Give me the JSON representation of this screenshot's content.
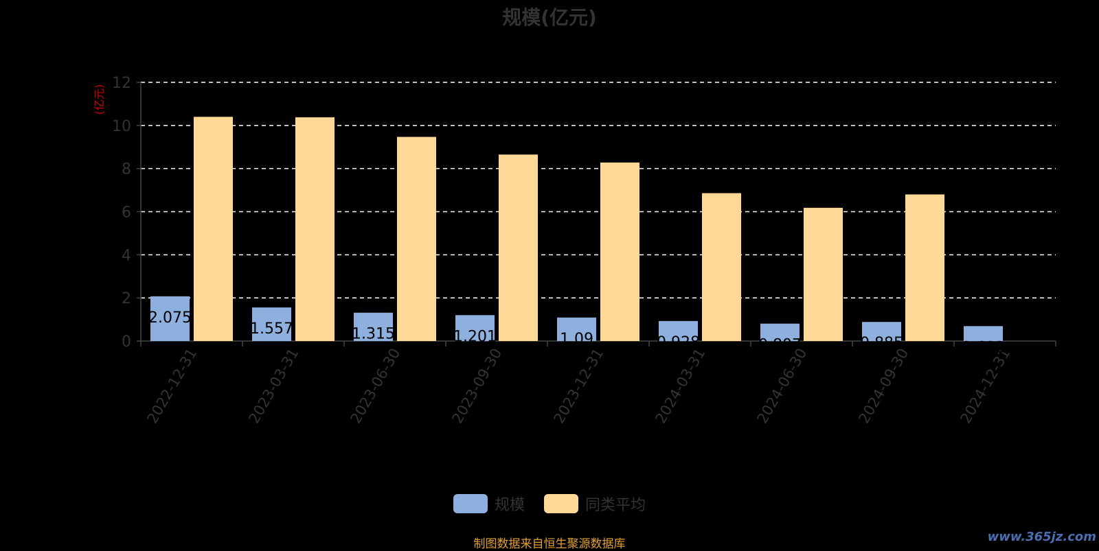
{
  "chart_data": {
    "type": "bar",
    "title": "规模(亿元)",
    "ylabel": "(亿元)",
    "xlabel": "",
    "ylim": [
      0,
      12
    ],
    "yticks": [
      0,
      2,
      4,
      6,
      8,
      10,
      12
    ],
    "grid": true,
    "legend_position": "bottom",
    "categories": [
      "2022-12-31",
      "2023-03-31",
      "2023-06-30",
      "2023-09-30",
      "2023-12-31",
      "2024-03-31",
      "2024-06-30",
      "2024-09-30",
      "2024-12-31"
    ],
    "series": [
      {
        "name": "规模",
        "color": "#8eb0de",
        "values": [
          2.075,
          1.557,
          1.315,
          1.201,
          1.09,
          0.928,
          0.807,
          0.885,
          0.692
        ],
        "labels": [
          "2.075",
          "1.557",
          "1.315",
          "1.201",
          "1.09",
          "0.928",
          "0.807",
          "0.885",
          "0.692"
        ]
      },
      {
        "name": "同类平均",
        "color": "#ffd896",
        "values": [
          10.4,
          10.38,
          9.47,
          8.65,
          8.28,
          6.86,
          6.18,
          6.8,
          null
        ]
      }
    ]
  },
  "legend": {
    "item1": "规模",
    "item2": "同类平均"
  },
  "footer": "制图数据来自恒生聚源数据库",
  "watermark": "www.365jz.com",
  "colors": {
    "ylabel": "#cc0000",
    "axis": "#444444",
    "grid": "#ffffff",
    "tick_text": "#333333",
    "footer": "#e0a030"
  }
}
